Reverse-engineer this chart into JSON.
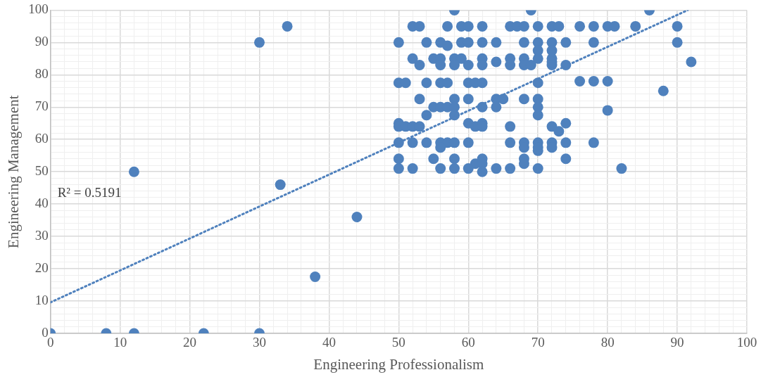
{
  "chart_data": {
    "type": "scatter",
    "xlabel": "Engineering Professionalism",
    "ylabel": "Engineering Management",
    "xlim": [
      0,
      100
    ],
    "ylim": [
      0,
      100
    ],
    "xticks": [
      0,
      {
        "value": 2,
        "label": null
      },
      {
        "value": 4,
        "label": null
      },
      {
        "value": 6,
        "label": null
      },
      {
        "value": 8,
        "label": null
      },
      10,
      {
        "value": 12,
        "label": null
      },
      {
        "value": 14,
        "label": null
      },
      {
        "value": 16,
        "label": null
      },
      {
        "value": 18,
        "label": null
      },
      20,
      {
        "value": 22,
        "label": null
      },
      {
        "value": 24,
        "label": null
      },
      {
        "value": 26,
        "label": null
      },
      {
        "value": 28,
        "label": null
      },
      30,
      {
        "value": 32,
        "label": null
      },
      {
        "value": 34,
        "label": null
      },
      {
        "value": 36,
        "label": null
      },
      {
        "value": 38,
        "label": null
      },
      40,
      {
        "value": 42,
        "label": null
      },
      {
        "value": 44,
        "label": null
      },
      {
        "value": 46,
        "label": null
      },
      {
        "value": 48,
        "label": null
      },
      50,
      {
        "value": 52,
        "label": null
      },
      {
        "value": 54,
        "label": null
      },
      {
        "value": 56,
        "label": null
      },
      {
        "value": 58,
        "label": null
      },
      60,
      {
        "value": 62,
        "label": null
      },
      {
        "value": 64,
        "label": null
      },
      {
        "value": 66,
        "label": null
      },
      {
        "value": 68,
        "label": null
      },
      70,
      {
        "value": 72,
        "label": null
      },
      {
        "value": 74,
        "label": null
      },
      {
        "value": 76,
        "label": null
      },
      {
        "value": 78,
        "label": null
      },
      80,
      {
        "value": 82,
        "label": null
      },
      {
        "value": 84,
        "label": null
      },
      {
        "value": 86,
        "label": null
      },
      {
        "value": 88,
        "label": null
      },
      90,
      {
        "value": 92,
        "label": null
      },
      {
        "value": 94,
        "label": null
      },
      {
        "value": 96,
        "label": null
      },
      {
        "value": 98,
        "label": null
      },
      100
    ],
    "yticks": [
      0,
      {
        "value": 2,
        "label": null
      },
      {
        "value": 4,
        "label": null
      },
      {
        "value": 6,
        "label": null
      },
      {
        "value": 8,
        "label": null
      },
      10,
      {
        "value": 12,
        "label": null
      },
      {
        "value": 14,
        "label": null
      },
      {
        "value": 16,
        "label": null
      },
      {
        "value": 18,
        "label": null
      },
      20,
      {
        "value": 22,
        "label": null
      },
      {
        "value": 24,
        "label": null
      },
      {
        "value": 26,
        "label": null
      },
      {
        "value": 28,
        "label": null
      },
      30,
      {
        "value": 32,
        "label": null
      },
      {
        "value": 34,
        "label": null
      },
      {
        "value": 36,
        "label": null
      },
      {
        "value": 38,
        "label": null
      },
      40,
      {
        "value": 42,
        "label": null
      },
      {
        "value": 44,
        "label": null
      },
      {
        "value": 46,
        "label": null
      },
      {
        "value": 48,
        "label": null
      },
      50,
      {
        "value": 52,
        "label": null
      },
      {
        "value": 54,
        "label": null
      },
      {
        "value": 56,
        "label": null
      },
      {
        "value": 58,
        "label": null
      },
      60,
      {
        "value": 62,
        "label": null
      },
      {
        "value": 64,
        "label": null
      },
      {
        "value": 66,
        "label": null
      },
      {
        "value": 68,
        "label": null
      },
      70,
      {
        "value": 72,
        "label": null
      },
      {
        "value": 74,
        "label": null
      },
      {
        "value": 76,
        "label": null
      },
      {
        "value": 78,
        "label": null
      },
      80,
      {
        "value": 82,
        "label": null
      },
      {
        "value": 84,
        "label": null
      },
      {
        "value": 86,
        "label": null
      },
      {
        "value": 88,
        "label": null
      },
      90,
      {
        "value": 92,
        "label": null
      },
      {
        "value": 94,
        "label": null
      },
      {
        "value": 96,
        "label": null
      },
      {
        "value": 98,
        "label": null
      },
      100
    ],
    "grid": true,
    "legend": false,
    "marker": "circle",
    "annotations": [
      "R² = 0.5191"
    ],
    "series": [
      {
        "color": "#4f81bd",
        "x": [
          0,
          8,
          12,
          22,
          30,
          12,
          30,
          34,
          33,
          38,
          44,
          86,
          84,
          90,
          90,
          92,
          88,
          80,
          82,
          80,
          81,
          80,
          78,
          76,
          78,
          76,
          78,
          78,
          58,
          69,
          52,
          53,
          57,
          59,
          60,
          62,
          66,
          67,
          68,
          70,
          72,
          73,
          50,
          54,
          56,
          59,
          60,
          62,
          64,
          68,
          70,
          72,
          74,
          57,
          52,
          55,
          56,
          58,
          59,
          62,
          66,
          68,
          70,
          72,
          70,
          72,
          53,
          56,
          58,
          60,
          62,
          66,
          68,
          69,
          72,
          74,
          64,
          72,
          50,
          51,
          54,
          56,
          57,
          60,
          61,
          62,
          70,
          53,
          58,
          60,
          64,
          65,
          68,
          70,
          55,
          56,
          57,
          58,
          62,
          64,
          70,
          54,
          58,
          70,
          50,
          60,
          62,
          74,
          50,
          51,
          52,
          53,
          61,
          62,
          66,
          72,
          73,
          50,
          52,
          54,
          56,
          57,
          58,
          60,
          66,
          68,
          70,
          72,
          74,
          56,
          68,
          70,
          72,
          70,
          50,
          55,
          58,
          62,
          68,
          74,
          61,
          62,
          68,
          50,
          52,
          56,
          58,
          60,
          64,
          66,
          70,
          62
        ],
        "values": [
          0,
          0,
          0,
          0,
          0,
          50,
          90,
          95,
          46,
          17.5,
          36,
          100,
          95,
          95,
          90,
          84,
          75,
          69,
          51,
          95,
          95,
          78,
          78,
          78,
          59,
          95,
          95,
          90,
          100,
          100,
          95,
          95,
          95,
          95,
          95,
          95,
          95,
          95,
          95,
          95,
          95,
          95,
          90,
          90,
          90,
          90,
          90,
          90,
          90,
          90,
          90,
          90,
          90,
          89,
          85,
          85,
          85,
          85,
          85,
          85,
          85,
          85,
          85,
          85,
          87.5,
          87.5,
          83,
          83,
          83,
          83,
          83,
          83,
          83,
          83,
          83,
          83,
          84,
          84,
          77.5,
          77.5,
          77.5,
          77.5,
          77.5,
          77.5,
          77.5,
          77.5,
          77.5,
          72.5,
          72.5,
          72.5,
          72.5,
          72.5,
          72.5,
          72.5,
          70,
          70,
          70,
          70,
          70,
          70,
          70,
          67.5,
          67.5,
          67.5,
          65,
          65,
          65,
          65,
          64,
          64,
          64,
          64,
          64,
          64,
          64,
          64,
          62.5,
          59,
          59,
          59,
          59,
          59,
          59,
          59,
          59,
          59,
          59,
          59,
          59,
          57.5,
          57.5,
          57.5,
          57.5,
          56.5,
          54,
          54,
          54,
          54,
          54,
          54,
          52.5,
          52.5,
          52.5,
          51,
          51,
          51,
          51,
          51,
          51,
          51,
          51,
          50
        ]
      },
      {
        "type": "line",
        "color": "#4f81bd",
        "marker": "none",
        "line_style": "dotted",
        "x": [
          0,
          91.5
        ],
        "values": [
          9.6,
          100
        ]
      }
    ]
  }
}
